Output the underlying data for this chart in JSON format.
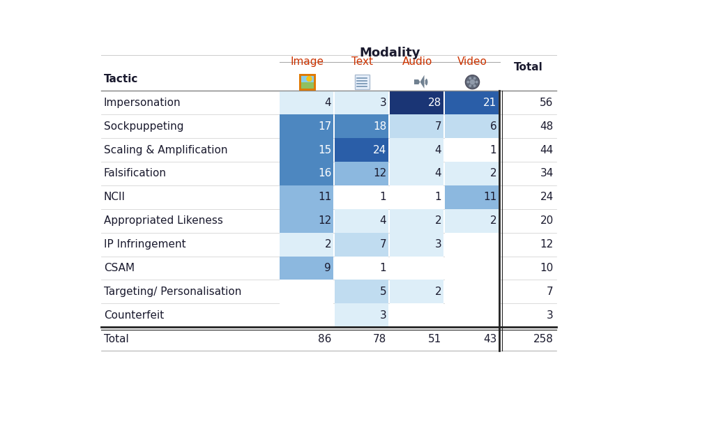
{
  "title": "Modality",
  "col_headers": [
    "Image",
    "Text",
    "Audio",
    "Video",
    "Total"
  ],
  "row_labels": [
    "Impersonation",
    "Sockpuppeting",
    "Scaling & Amplification",
    "Falsification",
    "NCII",
    "Appropriated Likeness",
    "IP Infringement",
    "CSAM",
    "Targeting/ Personalisation",
    "Counterfeit"
  ],
  "data": [
    [
      4,
      3,
      28,
      21,
      56
    ],
    [
      17,
      18,
      7,
      6,
      48
    ],
    [
      15,
      24,
      4,
      1,
      44
    ],
    [
      16,
      12,
      4,
      2,
      34
    ],
    [
      11,
      1,
      1,
      11,
      24
    ],
    [
      12,
      4,
      2,
      2,
      20
    ],
    [
      2,
      7,
      3,
      0,
      12
    ],
    [
      9,
      1,
      0,
      0,
      10
    ],
    [
      0,
      5,
      2,
      0,
      7
    ],
    [
      0,
      3,
      0,
      0,
      3
    ]
  ],
  "total_row": [
    86,
    78,
    51,
    43,
    258
  ],
  "max_val": 28,
  "color_thresholds": [
    0.07,
    0.15,
    0.3,
    0.5,
    0.7,
    0.86,
    1.01
  ],
  "cell_colors": [
    "#ffffff",
    "#ddeef8",
    "#c0dcf0",
    "#8cb8df",
    "#4d87c0",
    "#2a5ea8",
    "#1a3575"
  ],
  "text_dark": "#1a1a2e",
  "text_light": "#ffffff",
  "text_threshold": 0.45,
  "title_fontsize": 13,
  "header_fontsize": 11,
  "cell_fontsize": 11,
  "tactic_fontsize": 11,
  "total_fontsize": 11
}
